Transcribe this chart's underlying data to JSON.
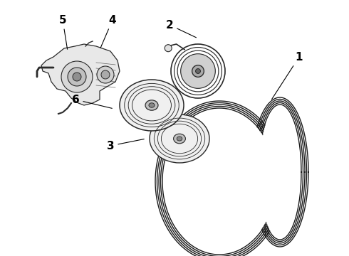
{
  "bg_color": "#ffffff",
  "line_color": "#2a2a2a",
  "figsize": [
    4.9,
    3.6
  ],
  "dpi": 100,
  "belt_color": "#1a1a1a",
  "part_color": "#1a1a1a"
}
